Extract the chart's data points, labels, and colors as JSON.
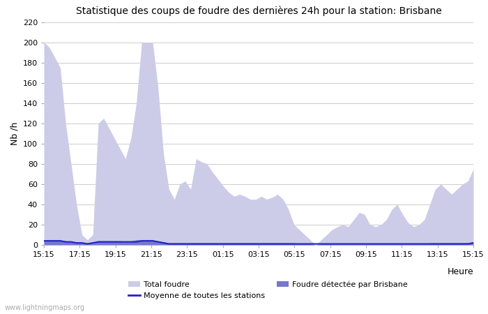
{
  "title": "Statistique des coups de foudre des dernières 24h pour la station: Brisbane",
  "ylabel": "Nb /h",
  "ylim": [
    0,
    220
  ],
  "yticks": [
    0,
    20,
    40,
    60,
    80,
    100,
    120,
    140,
    160,
    180,
    200,
    220
  ],
  "xtick_labels": [
    "15:15",
    "17:15",
    "19:15",
    "21:15",
    "23:15",
    "01:15",
    "03:15",
    "05:15",
    "07:15",
    "09:15",
    "11:15",
    "13:15",
    "15:15"
  ],
  "bg_color": "#ffffff",
  "grid_color": "#cccccc",
  "fill_total_color": "#cccce8",
  "fill_brisbane_color": "#7777cc",
  "line_avg_color": "#2222cc",
  "watermark": "www.lightningmaps.org",
  "total_foudre": [
    200,
    195,
    185,
    175,
    120,
    80,
    40,
    10,
    5,
    10,
    120,
    125,
    115,
    105,
    95,
    85,
    105,
    140,
    200,
    200,
    200,
    155,
    90,
    55,
    45,
    60,
    63,
    55,
    85,
    82,
    80,
    72,
    65,
    58,
    52,
    48,
    50,
    48,
    45,
    45,
    48,
    45,
    47,
    50,
    45,
    35,
    20,
    15,
    10,
    5,
    0,
    5,
    10,
    15,
    18,
    20,
    18,
    25,
    32,
    30,
    20,
    18,
    20,
    25,
    35,
    40,
    30,
    22,
    18,
    20,
    25,
    40,
    55,
    60,
    55,
    50,
    55,
    60,
    63,
    75
  ],
  "foudre_brisbane": [
    5,
    5,
    5,
    5,
    4,
    3,
    2,
    2,
    2,
    2,
    4,
    4,
    4,
    4,
    4,
    3,
    4,
    5,
    5,
    5,
    5,
    4,
    3,
    2,
    2,
    2,
    2,
    2,
    2,
    2,
    2,
    2,
    2,
    2,
    2,
    2,
    2,
    2,
    2,
    2,
    2,
    2,
    2,
    2,
    2,
    2,
    2,
    1,
    1,
    1,
    0,
    1,
    1,
    1,
    1,
    1,
    1,
    1,
    1,
    1,
    1,
    1,
    1,
    1,
    1,
    1,
    1,
    1,
    1,
    1,
    1,
    2,
    2,
    2,
    2,
    2,
    2,
    2,
    2,
    3
  ],
  "avg_stations": [
    4,
    4,
    4,
    4,
    3,
    3,
    2,
    2,
    1,
    2,
    3,
    3,
    3,
    3,
    3,
    3,
    3,
    3,
    4,
    4,
    4,
    3,
    2,
    1,
    1,
    1,
    1,
    1,
    1,
    1,
    1,
    1,
    1,
    1,
    1,
    1,
    1,
    1,
    1,
    1,
    1,
    1,
    1,
    1,
    1,
    1,
    1,
    1,
    1,
    1,
    1,
    1,
    1,
    1,
    1,
    1,
    1,
    1,
    1,
    1,
    1,
    1,
    1,
    1,
    1,
    1,
    1,
    1,
    1,
    1,
    1,
    1,
    1,
    1,
    1,
    1,
    1,
    1,
    1,
    2
  ],
  "n_xticks": 13,
  "legend_items": [
    {
      "label": "Total foudre",
      "type": "patch",
      "color": "#cccce8"
    },
    {
      "label": "Moyenne de toutes les stations",
      "type": "line",
      "color": "#2222cc"
    },
    {
      "label": "Foudre détectée par Brisbane",
      "type": "patch",
      "color": "#7777cc"
    }
  ]
}
